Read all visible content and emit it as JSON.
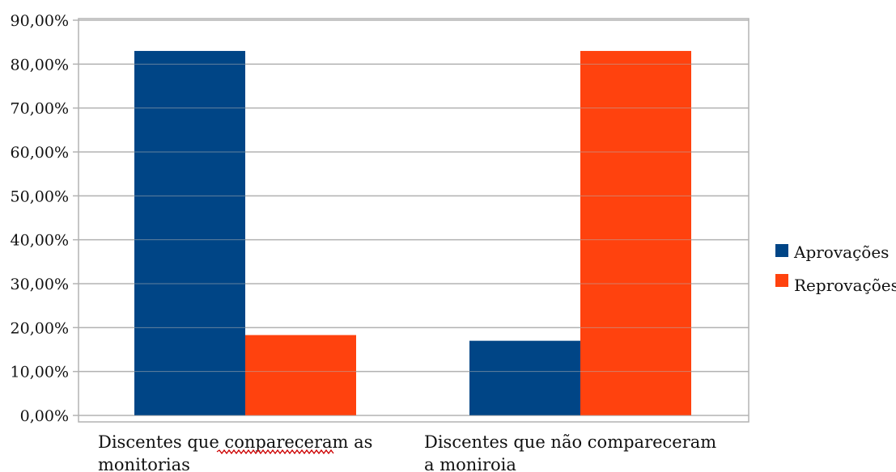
{
  "chart_data": {
    "type": "bar",
    "categories": [
      [
        "Discentes que conpareceram as",
        "monitorias"
      ],
      [
        "Discentes que não compareceram",
        "a moniroia"
      ]
    ],
    "series": [
      {
        "name": "Aprovações",
        "values": [
          0.83,
          0.17
        ],
        "color": "#004586"
      },
      {
        "name": "Reprovações",
        "values": [
          0.183,
          0.83
        ],
        "color": "#ff420e"
      }
    ],
    "y_ticks": [
      "0,00%",
      "10,00%",
      "20,00%",
      "30,00%",
      "40,00%",
      "50,00%",
      "60,00%",
      "70,00%",
      "80,00%",
      "90,00%"
    ],
    "ylim": [
      0,
      0.9
    ],
    "grid": true,
    "legend_position": "right",
    "gridline_color": "#b3b3b3",
    "spellcheck_underline_color": "#cc0000"
  }
}
